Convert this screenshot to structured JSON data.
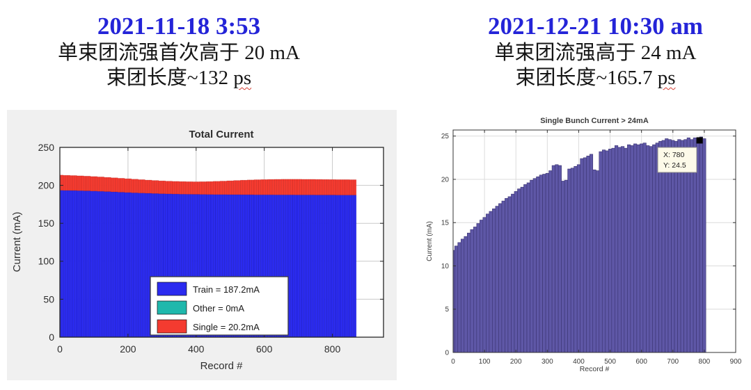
{
  "left_panel": {
    "date": "2021-11-18 3:53",
    "date_color": "#2424d8",
    "line1": "单束团流强首次高于 20 mA",
    "line2_prefix": "束团长度~132 ",
    "line2_unit": "ps"
  },
  "right_panel": {
    "date": "2021-12-21 10:30 am",
    "date_color": "#2424d8",
    "line1": "单束团流强高于 24 mA",
    "line2_prefix": "束团长度~165.7 ",
    "line2_unit": "ps"
  },
  "chart_data": [
    {
      "type": "bar",
      "stacked": true,
      "title": "Total Current",
      "xlabel": "Record #",
      "ylabel": "Current (mA)",
      "xlim": [
        0,
        950
      ],
      "ylim": [
        0,
        250
      ],
      "xticks": [
        0,
        200,
        400,
        600,
        800
      ],
      "yticks": [
        0,
        50,
        100,
        150,
        200,
        250
      ],
      "grid": true,
      "legend_position": "inside-bottom-center",
      "figure_bg": "#f0f0f0",
      "x": [
        0,
        20,
        40,
        60,
        80,
        100,
        120,
        140,
        160,
        180,
        200,
        220,
        240,
        260,
        280,
        300,
        320,
        340,
        360,
        380,
        400,
        420,
        440,
        460,
        480,
        500,
        520,
        540,
        560,
        580,
        600,
        620,
        640,
        660,
        680,
        700,
        720,
        740,
        760,
        780,
        800,
        820,
        840,
        860
      ],
      "series": [
        {
          "name": "Train = 187.2mA",
          "color": "#2b2bef",
          "values": [
            193.5,
            193.3,
            193.2,
            193.0,
            192.8,
            192.5,
            192.2,
            191.8,
            191.4,
            191.0,
            190.6,
            190.2,
            189.9,
            189.6,
            189.3,
            189.0,
            188.8,
            188.6,
            188.4,
            188.3,
            188.2,
            188.1,
            188.0,
            187.9,
            187.9,
            187.8,
            187.8,
            187.7,
            187.7,
            187.6,
            187.6,
            187.6,
            187.5,
            187.5,
            187.5,
            187.4,
            187.4,
            187.4,
            187.3,
            187.3,
            187.3,
            187.2,
            187.2,
            187.2
          ]
        },
        {
          "name": "Other = 0mA",
          "color": "#1fb8ac",
          "values": [
            0,
            0,
            0,
            0,
            0,
            0,
            0,
            0,
            0,
            0,
            0,
            0,
            0,
            0,
            0,
            0,
            0,
            0,
            0,
            0,
            0,
            0,
            0,
            0,
            0,
            0,
            0,
            0,
            0,
            0,
            0,
            0,
            0,
            0,
            0,
            0,
            0,
            0,
            0,
            0,
            0,
            0,
            0,
            0
          ]
        },
        {
          "name": "Single = 20.2mA",
          "color": "#f43b30",
          "values": [
            20.0,
            19.9,
            19.7,
            19.5,
            19.3,
            19.1,
            18.9,
            18.7,
            18.5,
            18.3,
            18.1,
            17.9,
            17.6,
            17.3,
            17.1,
            16.9,
            16.7,
            16.6,
            16.6,
            16.5,
            16.5,
            16.7,
            17.0,
            17.4,
            17.7,
            18.2,
            18.6,
            19.1,
            19.4,
            19.8,
            20.0,
            20.2,
            20.4,
            20.5,
            20.5,
            20.6,
            20.5,
            20.5,
            20.5,
            20.4,
            20.3,
            20.3,
            20.3,
            20.2
          ]
        }
      ]
    },
    {
      "type": "bar",
      "stacked": false,
      "title": "Single Bunch Current > 24mA",
      "xlabel": "Record #",
      "ylabel": "Current (mA)",
      "xlim": [
        0,
        900
      ],
      "ylim": [
        0,
        25.7
      ],
      "xticks": [
        0,
        100,
        200,
        300,
        400,
        500,
        600,
        700,
        800,
        900
      ],
      "yticks": [
        0,
        5,
        10,
        15,
        20,
        25
      ],
      "grid": true,
      "figure_bg": "#ffffff",
      "bar_color": "#5e57a6",
      "bar_edge_color": "#3b3472",
      "x": [
        0,
        10,
        20,
        30,
        40,
        50,
        60,
        70,
        80,
        90,
        100,
        110,
        120,
        130,
        140,
        150,
        160,
        170,
        180,
        190,
        200,
        210,
        220,
        230,
        240,
        250,
        260,
        270,
        280,
        290,
        300,
        310,
        320,
        330,
        340,
        350,
        360,
        370,
        380,
        390,
        400,
        410,
        420,
        430,
        440,
        450,
        460,
        470,
        480,
        490,
        500,
        510,
        520,
        530,
        540,
        550,
        560,
        570,
        580,
        590,
        600,
        610,
        620,
        630,
        640,
        650,
        660,
        670,
        680,
        690,
        700,
        710,
        720,
        730,
        740,
        750,
        760,
        770,
        780,
        790,
        800
      ],
      "values": [
        11.8,
        12.3,
        12.7,
        13.1,
        13.4,
        13.8,
        14.2,
        14.5,
        14.9,
        15.3,
        15.6,
        16.0,
        16.3,
        16.6,
        16.9,
        17.2,
        17.5,
        17.8,
        18.0,
        18.3,
        18.6,
        18.9,
        19.1,
        19.4,
        19.6,
        19.9,
        20.1,
        20.3,
        20.5,
        20.6,
        20.7,
        21.0,
        21.6,
        21.7,
        21.6,
        19.8,
        19.9,
        21.2,
        21.3,
        21.5,
        21.7,
        22.4,
        22.5,
        22.7,
        22.9,
        21.1,
        21.0,
        23.2,
        23.4,
        23.3,
        23.5,
        23.6,
        23.9,
        23.7,
        23.8,
        23.6,
        24.0,
        23.9,
        24.1,
        24.0,
        24.1,
        24.2,
        23.9,
        23.8,
        24.0,
        24.2,
        24.4,
        24.5,
        24.7,
        24.6,
        24.5,
        24.4,
        24.6,
        24.5,
        24.6,
        24.8,
        24.6,
        24.8,
        24.5,
        24.9,
        24.7
      ],
      "datatip": {
        "x": 780,
        "y": 24.5,
        "lines": [
          "X: 780",
          "Y: 24.5"
        ],
        "bg": "#fdfae9",
        "border": "#8a8a8a",
        "marker_color": "#000000"
      }
    }
  ]
}
